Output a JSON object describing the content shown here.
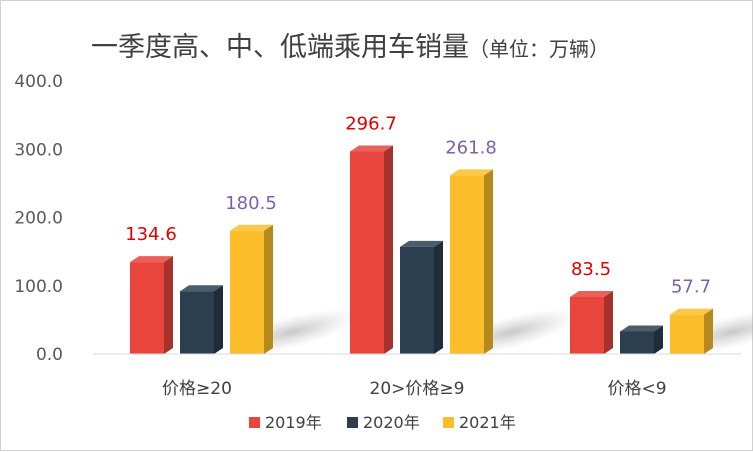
{
  "chart_data": {
    "type": "bar",
    "title": "一季度高、中、低端乘用车销量",
    "subtitle": "（单位：万辆）",
    "categories": [
      "价格≥20",
      "20>价格≥9",
      "价格<9"
    ],
    "series": [
      {
        "name": "2019年",
        "values": [
          134.6,
          296.7,
          83.5
        ],
        "color": "#e8453c",
        "labels": [
          "134.6",
          "296.7",
          "83.5"
        ],
        "label_color": "#e00000"
      },
      {
        "name": "2020年",
        "values": [
          92,
          157,
          33
        ],
        "color": "#2b3f50",
        "labels": [
          "",
          "",
          ""
        ],
        "label_color": "#404040"
      },
      {
        "name": "2021年",
        "values": [
          180.5,
          261.8,
          57.7
        ],
        "color": "#fbbe2a",
        "labels": [
          "180.5",
          "261.8",
          "57.7"
        ],
        "label_color": "#7f5fa8"
      }
    ],
    "ylim": [
      0,
      400
    ],
    "yticks": [
      "0.0",
      "100.0",
      "200.0",
      "300.0",
      "400.0"
    ],
    "grid": false,
    "legend": "bottom"
  }
}
